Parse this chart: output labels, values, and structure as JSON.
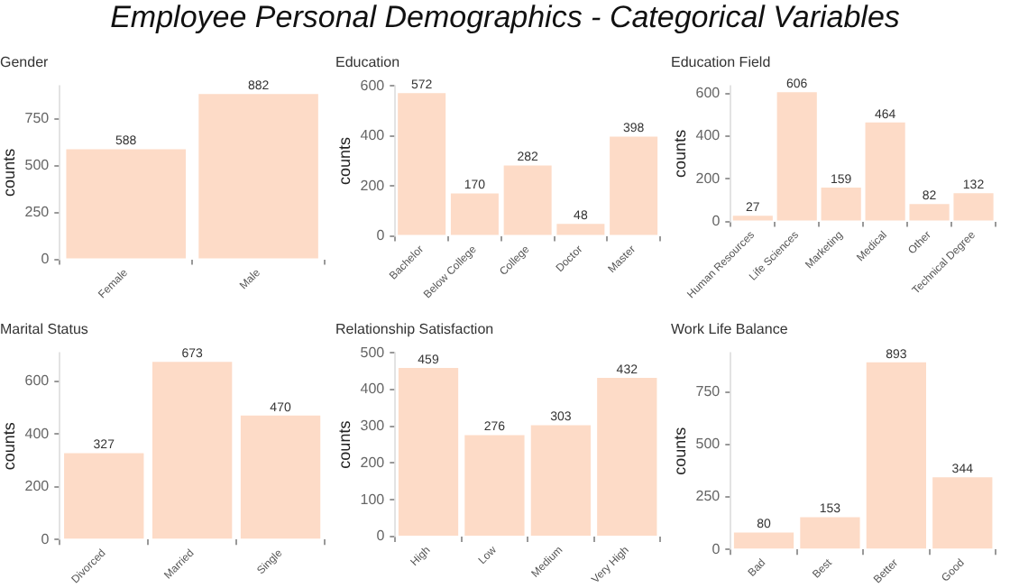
{
  "chart_data": [
    {
      "type": "bar",
      "title": "Gender",
      "ylabel": "counts",
      "annotations": [
        "Employee Personal Demographics - Categorical Variables"
      ],
      "categories": [
        "Female",
        "Male"
      ],
      "values": [
        588,
        882
      ],
      "color": "#fddbc7",
      "ylim": [
        0,
        926
      ],
      "yticks": [
        0,
        250,
        500,
        750
      ],
      "grid": false,
      "data_labels": true
    },
    {
      "type": "bar",
      "title": "Education",
      "ylabel": "counts",
      "categories": [
        "Bachelor",
        "Below College",
        "College",
        "Doctor",
        "Master"
      ],
      "values": [
        572,
        170,
        282,
        48,
        398
      ],
      "color": "#fddbc7",
      "ylim": [
        0,
        601
      ],
      "yticks": [
        0,
        200,
        400,
        600
      ],
      "grid": false,
      "data_labels": true
    },
    {
      "type": "bar",
      "title": "Education Field",
      "ylabel": "counts",
      "categories": [
        "Human Resources",
        "Life Sciences",
        "Marketing",
        "Medical",
        "Other",
        "Technical Degree"
      ],
      "values": [
        27,
        606,
        159,
        464,
        82,
        132
      ],
      "color": "#fddbc7",
      "ylim": [
        0,
        636
      ],
      "yticks": [
        0,
        200,
        400,
        600
      ],
      "grid": false,
      "data_labels": true
    },
    {
      "type": "bar",
      "title": "Marital Status",
      "ylabel": "counts",
      "categories": [
        "Divorced",
        "Married",
        "Single"
      ],
      "values": [
        327,
        673,
        470
      ],
      "color": "#fddbc7",
      "ylim": [
        0,
        707
      ],
      "yticks": [
        0,
        200,
        400,
        600
      ],
      "grid": false,
      "data_labels": true
    },
    {
      "type": "bar",
      "title": "Relationship Satisfaction",
      "ylabel": "counts",
      "categories": [
        "High",
        "Low",
        "Medium",
        "Very High"
      ],
      "values": [
        459,
        276,
        303,
        432
      ],
      "color": "#fddbc7",
      "ylim": [
        0,
        500
      ],
      "yticks": [
        0,
        100,
        200,
        300,
        400,
        500
      ],
      "grid": false,
      "data_labels": true
    },
    {
      "type": "bar",
      "title": "Work Life Balance",
      "ylabel": "counts",
      "categories": [
        "Bad",
        "Best",
        "Better",
        "Good"
      ],
      "values": [
        80,
        153,
        893,
        344
      ],
      "color": "#fddbc7",
      "ylim": [
        0,
        938
      ],
      "yticks": [
        0,
        250,
        500,
        750
      ],
      "grid": false,
      "data_labels": true
    }
  ]
}
